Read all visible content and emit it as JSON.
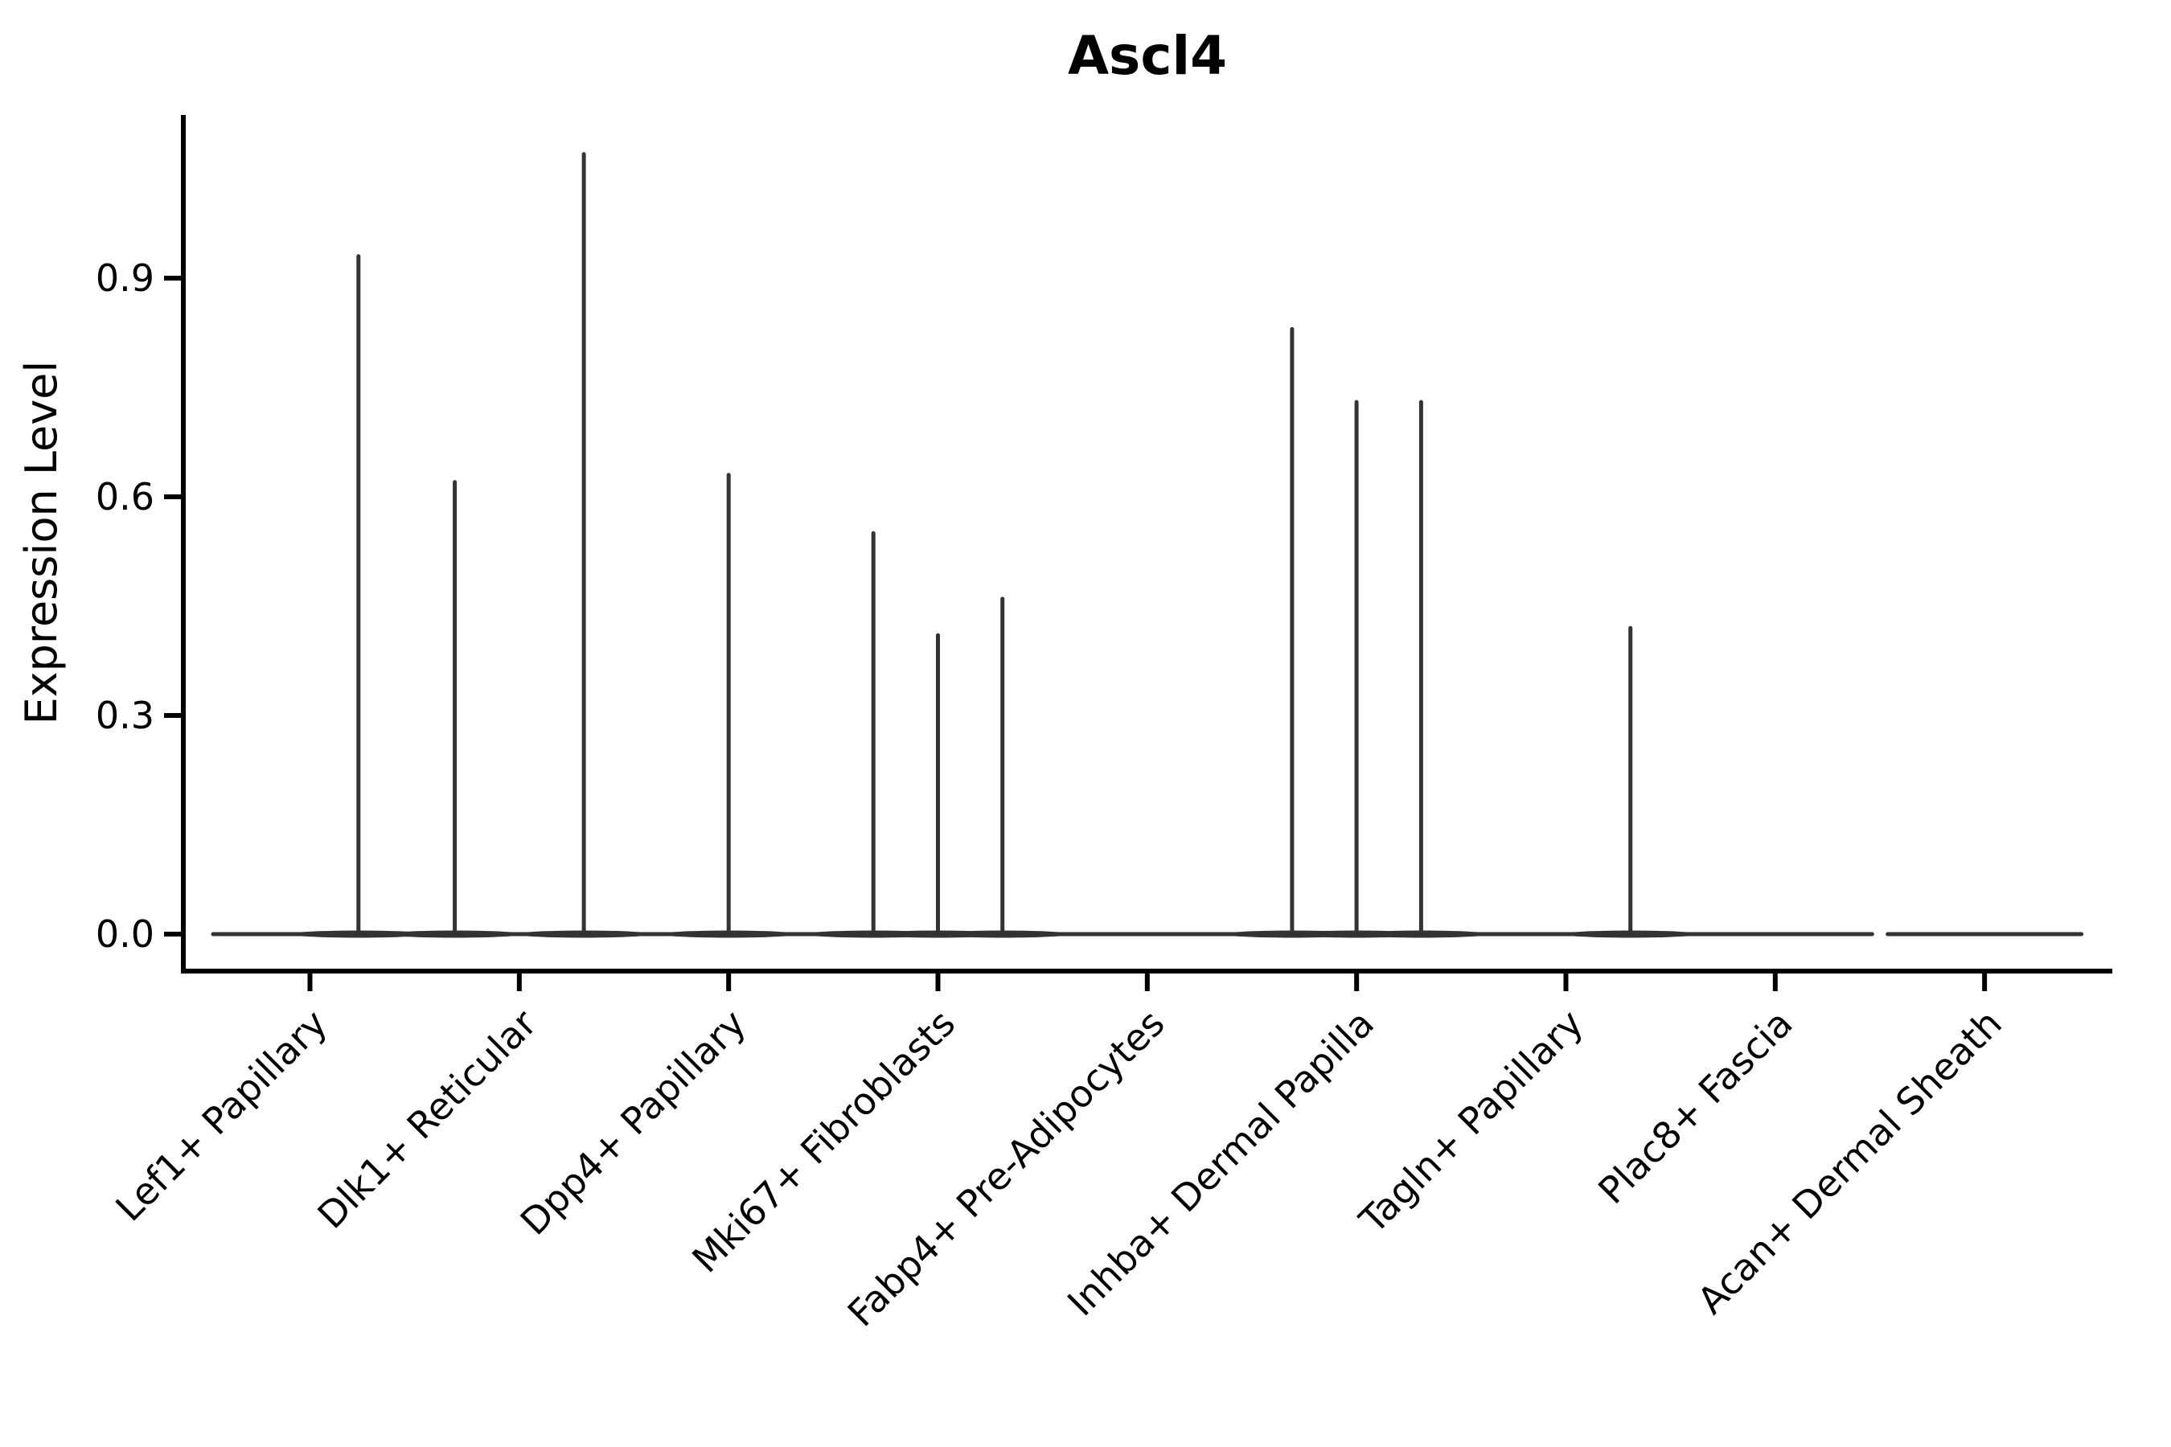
{
  "figure": {
    "background": "#ffffff"
  },
  "chart_data": {
    "type": "violin",
    "title": "Ascl4",
    "xlabel": "",
    "ylabel": "Expression Level",
    "legend": "none",
    "grid": "off",
    "panel_background": "#ffffff",
    "axis_color": "#000000",
    "violin_color": "#333333",
    "ylim": [
      -0.05,
      1.12
    ],
    "yticks": [
      {
        "label": "0.0",
        "value": 0.0
      },
      {
        "label": "0.3",
        "value": 0.3
      },
      {
        "label": "0.6",
        "value": 0.6
      },
      {
        "label": "0.9",
        "value": 0.9
      }
    ],
    "categories": [
      "Lef1+ Papillary",
      "Dlk1+ Reticular",
      "Dpp4+ Papillary",
      "Mki67+ Fibroblasts",
      "Fabp4+ Pre-Adipocytes",
      "Inhba+ Dermal Papilla",
      "Tagln+ Papillary",
      "Plac8+ Fascia",
      "Acan+ Dermal Sheath"
    ],
    "groups": [
      {
        "category": "Lef1+ Papillary",
        "baseline_value": 0.0,
        "spikes": [
          {
            "pos": 0.25,
            "max": 0.93
          }
        ]
      },
      {
        "category": "Dlk1+ Reticular",
        "baseline_value": 0.0,
        "spikes": [
          {
            "pos": -0.333,
            "max": 0.62
          },
          {
            "pos": 0.333,
            "max": 1.07
          }
        ]
      },
      {
        "category": "Dpp4+ Papillary",
        "baseline_value": 0.0,
        "spikes": [
          {
            "pos": 0.0,
            "max": 0.63
          }
        ]
      },
      {
        "category": "Mki67+ Fibroblasts",
        "baseline_value": 0.0,
        "spikes": [
          {
            "pos": -0.333,
            "max": 0.55
          },
          {
            "pos": 0.0,
            "max": 0.41
          },
          {
            "pos": 0.333,
            "max": 0.46
          }
        ]
      },
      {
        "category": "Fabp4+ Pre-Adipocytes",
        "baseline_value": 0.0,
        "spikes": []
      },
      {
        "category": "Inhba+ Dermal Papilla",
        "baseline_value": 0.0,
        "spikes": [
          {
            "pos": -0.333,
            "max": 0.83
          },
          {
            "pos": 0.0,
            "max": 0.73
          },
          {
            "pos": 0.333,
            "max": 0.73
          }
        ]
      },
      {
        "category": "Tagln+ Papillary",
        "baseline_value": 0.0,
        "spikes": [
          {
            "pos": 0.333,
            "max": 0.42
          }
        ]
      },
      {
        "category": "Plac8+ Fascia",
        "baseline_value": 0.0,
        "spikes": []
      },
      {
        "category": "Acan+ Dermal Sheath",
        "baseline_value": 0.0,
        "spikes": []
      }
    ]
  }
}
